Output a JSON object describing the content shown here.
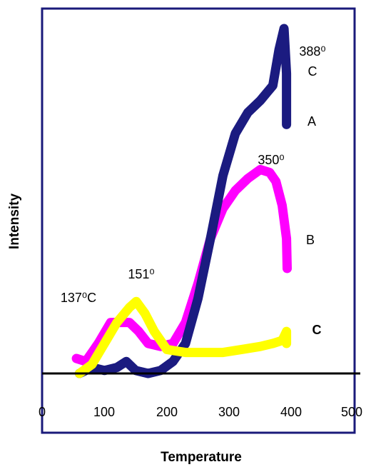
{
  "chart_data": {
    "type": "line",
    "xlabel": "Temperature",
    "ylabel": "Intensity",
    "xlim": [
      0,
      500
    ],
    "ylim": [
      0,
      100
    ],
    "x_ticks": [
      "0",
      "100",
      "200",
      "300",
      "400",
      "500"
    ],
    "grid": false,
    "series": [
      {
        "name": "A",
        "color": "#1b1b80",
        "x": [
          60,
          80,
          100,
          120,
          135,
          150,
          170,
          190,
          210,
          230,
          250,
          270,
          290,
          310,
          330,
          350,
          370,
          380,
          388,
          392,
          392
        ],
        "y": [
          0,
          2,
          1,
          2,
          4,
          1,
          0,
          1,
          4,
          10,
          25,
          45,
          66,
          80,
          87,
          91,
          96,
          108,
          115,
          100,
          83
        ]
      },
      {
        "name": "B",
        "color": "#ff00ff",
        "x": [
          55,
          70,
          90,
          110,
          125,
          140,
          155,
          170,
          190,
          210,
          230,
          250,
          270,
          290,
          310,
          330,
          350,
          365,
          375,
          385,
          392,
          393
        ],
        "y": [
          5,
          4,
          10,
          17,
          17,
          17,
          14,
          10,
          9,
          10,
          17,
          30,
          45,
          55,
          61,
          65,
          68,
          67,
          64,
          56,
          45,
          35
        ]
      },
      {
        "name": "C",
        "color": "#ffff00",
        "x": [
          60,
          80,
          100,
          120,
          140,
          151,
          165,
          180,
          200,
          230,
          260,
          290,
          320,
          350,
          370,
          385,
          392,
          392
        ],
        "y": [
          0,
          3,
          10,
          17,
          22,
          24,
          20,
          14,
          8,
          7,
          7,
          7,
          8,
          9,
          10,
          11,
          14,
          10
        ]
      }
    ],
    "annotations": [
      {
        "text": "388⁰",
        "sub": "C",
        "target": "A"
      },
      {
        "text": "350⁰",
        "target": "B"
      },
      {
        "text": "151⁰",
        "target": "C"
      },
      {
        "text": "137⁰C",
        "target": "B"
      }
    ],
    "curve_labels": [
      "A",
      "B",
      "C"
    ]
  }
}
